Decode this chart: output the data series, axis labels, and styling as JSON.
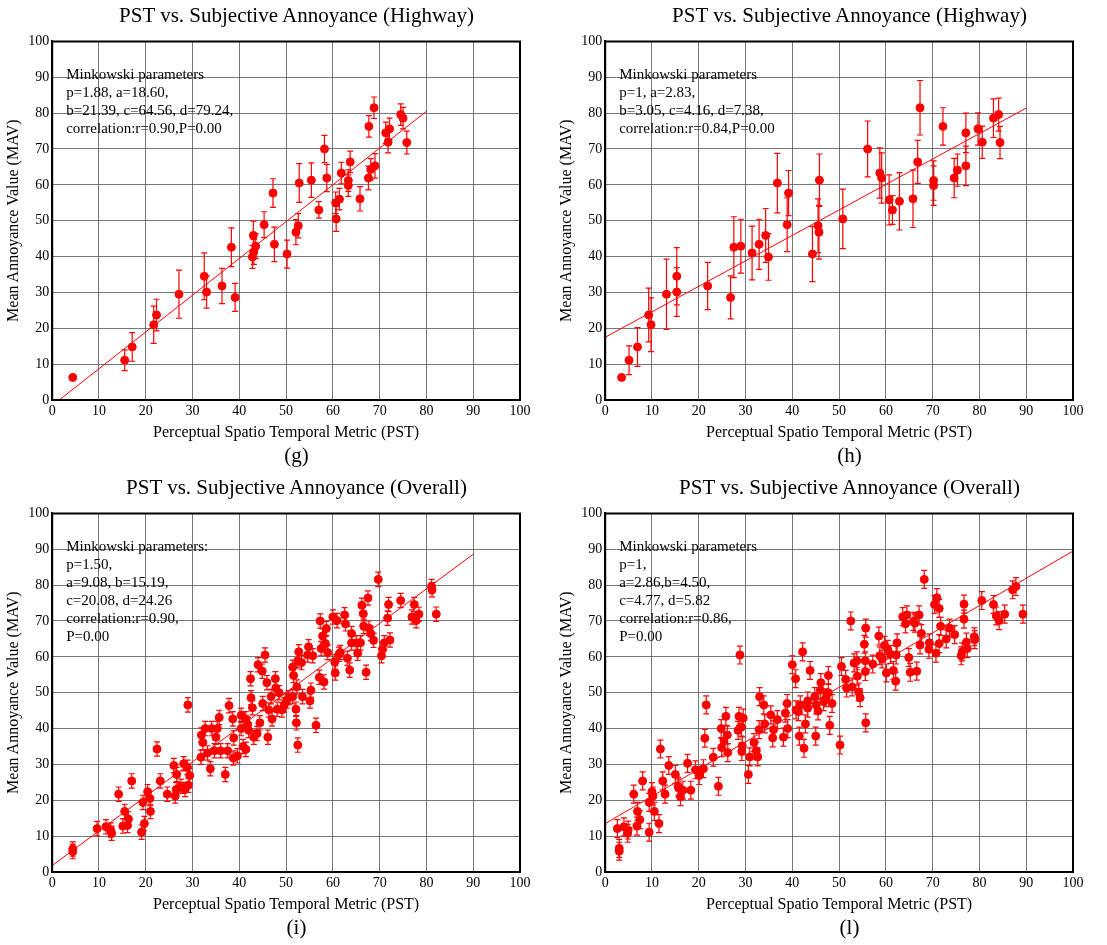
{
  "chart_data": [
    {
      "type": "scatter",
      "title": "PST vs. Subjective Annoyance (Highway)",
      "xlabel": "Perceptual Spatio Temporal Metric (PST)",
      "ylabel": "Mean Annoyance Value (MAV)",
      "annotations": [
        "Minkowski parameters\np=1.88, a=18.60,\nb=21.39, c=64.56, d=79.24,\ncorrelation:r=0.90,P=0.00",
        "(g)"
      ],
      "xlim": [
        0,
        100
      ],
      "ylim": [
        0,
        100
      ],
      "xticks": [
        0,
        10,
        20,
        30,
        40,
        50,
        60,
        70,
        80,
        90,
        100
      ],
      "yticks": [
        0,
        10,
        20,
        30,
        40,
        50,
        60,
        70,
        80,
        90,
        100
      ],
      "grid": true,
      "legend": false,
      "marker": "circle",
      "series": [
        {
          "type": "scatter",
          "color": "#ff0000",
          "x": [
            4.4,
            15.5,
            17.1,
            21.7,
            22.3,
            27.1,
            32.5,
            33.0,
            36.3,
            38.3,
            39.1,
            42.8,
            43.0,
            43.1,
            43.5,
            45.3,
            47.2,
            47.5,
            50.2,
            52.1,
            52.6,
            52.8,
            55.4,
            57.0,
            58.2,
            58.7,
            60.7,
            60.6,
            61.4,
            61.8,
            63.3,
            63.3,
            63.7,
            65.8,
            67.6,
            67.7,
            68.1,
            69.0,
            68.8,
            71.3,
            71.8,
            72.1,
            74.5,
            75.0,
            75.8
          ],
          "values": [
            6.3,
            11.1,
            14.8,
            21.0,
            23.7,
            29.5,
            34.5,
            30.1,
            31.8,
            42.6,
            28.6,
            39.9,
            45.9,
            41.3,
            42.9,
            48.9,
            57.7,
            43.4,
            40.7,
            46.8,
            48.6,
            60.5,
            61.3,
            53.0,
            70.0,
            61.9,
            50.5,
            55.0,
            56.0,
            63.3,
            61.2,
            59.8,
            66.4,
            56.1,
            61.9,
            76.3,
            64.3,
            65.3,
            81.5,
            74.5,
            71.9,
            75.6,
            79.6,
            78.6,
            71.8
          ],
          "errors": [
            null,
            2.9,
            4.0,
            5.2,
            4.4,
            6.7,
            6.5,
            4.5,
            4.9,
            5.4,
            3.9,
            3.2,
            4,
            3.5,
            3.5,
            3.6,
            4,
            4.8,
            3.9,
            3.5,
            3.4,
            5.4,
            4.8,
            2.3,
            3.8,
            3.8,
            3.5,
            3,
            3,
            3,
            3,
            3,
            3,
            3.4,
            3.3,
            3,
            3,
            3.4,
            3,
            3,
            3,
            3,
            3,
            3,
            3.2
          ]
        },
        {
          "type": "line",
          "color": "#ff0000",
          "marker": "none",
          "line_style": "solid",
          "x": [
            1.5,
            80
          ],
          "values": [
            0,
            80.5
          ]
        }
      ]
    },
    {
      "type": "scatter",
      "title": "PST vs. Subjective Annoyance (Highway)",
      "xlabel": "Perceptual Spatio Temporal Metric (PST)",
      "ylabel": "Mean Annoyance Value (MAV)",
      "annotations": [
        "Minkowski parameters\np=1, a=2.83,\nb=3.05, c=4.16, d=7.38,\ncorrelation:r=0.84,P=0.00",
        "(h)"
      ],
      "xlim": [
        0,
        100
      ],
      "ylim": [
        0,
        100
      ],
      "xticks": [
        0,
        10,
        20,
        30,
        40,
        50,
        60,
        70,
        80,
        90,
        100
      ],
      "yticks": [
        0,
        10,
        20,
        30,
        40,
        50,
        60,
        70,
        80,
        90,
        100
      ],
      "grid": true,
      "legend": false,
      "marker": "circle",
      "series": [
        {
          "type": "scatter",
          "color": "#ff0000",
          "x": [
            3.5,
            5.1,
            6.9,
            9.3,
            9.8,
            13.1,
            15.3,
            15.3,
            21.9,
            26.8,
            27.5,
            29.0,
            31.4,
            32.9,
            34.3,
            34.9,
            36.8,
            38.9,
            39.2,
            44.3,
            45.5,
            45.7,
            45.8,
            50.8,
            56.1,
            58.7,
            59.1,
            60.7,
            61.4,
            62.9,
            65.8,
            66.8,
            67.3,
            70.2,
            70.2,
            72.2,
            74.6,
            75.3,
            77.1,
            77.1,
            79.7,
            80.6,
            83.0,
            84.1,
            84.4
          ],
          "values": [
            6.3,
            11.1,
            14.8,
            23.7,
            21.0,
            29.5,
            34.5,
            30.1,
            31.8,
            28.6,
            42.6,
            42.9,
            41.0,
            43.4,
            45.9,
            39.9,
            60.5,
            48.9,
            57.7,
            40.7,
            48.6,
            46.8,
            61.3,
            50.5,
            70.0,
            63.3,
            61.9,
            55.8,
            53.0,
            55.4,
            56.1,
            66.4,
            81.5,
            61.2,
            59.8,
            76.3,
            61.9,
            64.1,
            74.5,
            65.3,
            75.6,
            71.9,
            78.6,
            79.6,
            71.8
          ],
          "errors": [
            null,
            4,
            5.4,
            7.5,
            7.5,
            9.8,
            8,
            6.8,
            6.6,
            6,
            8.5,
            7.5,
            7.5,
            7,
            7.5,
            6.5,
            8.3,
            7.5,
            6.3,
            7.7,
            7.5,
            7.5,
            7.3,
            8.3,
            7.8,
            7,
            7,
            7,
            4,
            8,
            8,
            6,
            7.6,
            5.5,
            5.5,
            5.2,
            5.5,
            4.5,
            5.5,
            5.5,
            4.5,
            4.5,
            5.4,
            4.6,
            4.5
          ]
        },
        {
          "type": "line",
          "color": "#ff0000",
          "marker": "none",
          "line_style": "solid",
          "x": [
            0,
            90
          ],
          "values": [
            17.5,
            81.4
          ]
        }
      ]
    },
    {
      "type": "scatter",
      "title": "PST vs. Subjective Annoyance (Overall)",
      "xlabel": "Perceptual Spatio Temporal Metric (PST)",
      "ylabel": "Mean Annoyance Value (MAV)",
      "annotations": [
        "Minkowski parameters:\np=1.50,\na=9.08, b=15.19,\nc=20.08, d=24.26\ncorrelation:r=0.90,\nP=0.00",
        "(i)"
      ],
      "xlim": [
        0,
        100
      ],
      "ylim": [
        0,
        100
      ],
      "xticks": [
        0,
        10,
        20,
        30,
        40,
        50,
        60,
        70,
        80,
        90,
        100
      ],
      "yticks": [
        0,
        10,
        20,
        30,
        40,
        50,
        60,
        70,
        80,
        90,
        100
      ],
      "grid": true,
      "legend": false,
      "marker": "circle",
      "series": [
        {
          "type": "scatter",
          "color": "#ff0000",
          "x": [
            4.4,
            4.4,
            9.6,
            11.5,
            12.5,
            12.7,
            14.2,
            15.5,
            15.1,
            16.1,
            16.3,
            17.0,
            19.1,
            19.7,
            19.4,
            20.4,
            20.9,
            21.0,
            22.4,
            23.1,
            24.6,
            26.0,
            26.3,
            26.6,
            26.5,
            27.5,
            28.1,
            28.4,
            29.0,
            29.1,
            29.4,
            28.9,
            31.8,
            31.9,
            32.2,
            32.7,
            33.2,
            33.8,
            34.1,
            34.7,
            35.0,
            35.3,
            35.7,
            36.0,
            37.0,
            37.5,
            37.8,
            38.6,
            38.8,
            38.7,
            39.6,
            40.4,
            40.4,
            40.8,
            41.4,
            41.4,
            41.8,
            42.0,
            42.4,
            42.5,
            42.8,
            43.1,
            43.8,
            44.4,
            44.0,
            45.0,
            45.5,
            44.9,
            45.9,
            46.1,
            46.3,
            47.0,
            46.8,
            47.7,
            47.8,
            48.1,
            48.5,
            49.1,
            49.6,
            50.1,
            50.5,
            51.4,
            51.4,
            51.6,
            52.1,
            52.2,
            52.5,
            52.3,
            52.7,
            52.5,
            53.3,
            53.5,
            54.6,
            54.8,
            55.1,
            55.3,
            55.7,
            56.4,
            57.1,
            57.3,
            57.5,
            57.8,
            58.1,
            58.4,
            58.6,
            58.9,
            60.0,
            60.4,
            60.5,
            60.9,
            61.3,
            61.6,
            62.5,
            62.7,
            63.1,
            63.6,
            64.0,
            64.0,
            65.0,
            65.3,
            65.9,
            66.2,
            66.5,
            66.6,
            67.1,
            67.5,
            67.7,
            68.1,
            68.7,
            69.7,
            70.4,
            70.6,
            71.0,
            71.7,
            71.9,
            72.2,
            74.5,
            76.9,
            77.4,
            77.8,
            78.4,
            81.1,
            81.2,
            82.1
          ],
          "values": [
            6.4,
            5.7,
            12.1,
            12.6,
            11.7,
            10.8,
            21.7,
            16.9,
            12.8,
            13.0,
            14.8,
            25.4,
            11.1,
            13.5,
            19.4,
            22.4,
            20.5,
            16.9,
            34.3,
            25.4,
            21.7,
            29.7,
            21.2,
            27.2,
            23.0,
            23.9,
            30.2,
            23.0,
            46.6,
            24.2,
            26.9,
            29.2,
            32.0,
            38.2,
            36.1,
            40.0,
            33.2,
            28.8,
            40.0,
            33.8,
            37.6,
            40.0,
            43.1,
            33.8,
            27.2,
            33.8,
            46.4,
            42.7,
            37.4,
            31.8,
            32.4,
            43.7,
            40.0,
            35.0,
            34.2,
            42.7,
            41.1,
            39.5,
            53.9,
            48.6,
            45.8,
            37.6,
            38.6,
            41.6,
            57.8,
            47.0,
            60.5,
            56.0,
            52.8,
            37.6,
            45.2,
            42.7,
            48.9,
            53.9,
            51.3,
            45.4,
            50.0,
            45.2,
            46.6,
            47.7,
            48.6,
            48.9,
            57.1,
            54.8,
            45.4,
            41.6,
            35.4,
            51.6,
            61.4,
            58.9,
            58.4,
            48.9,
            60.5,
            62.8,
            47.7,
            50.7,
            60.3,
            40.9,
            54.3,
            70.0,
            62.3,
            65.8,
            53.0,
            63.7,
            67.9,
            61.2,
            71.1,
            58.6,
            55.5,
            70.1,
            60.7,
            61.2,
            71.7,
            69.2,
            59.6,
            56.3,
            66.5,
            63.9,
            63.9,
            61.0,
            63.9,
            74.4,
            72.0,
            68.5,
            55.7,
            76.4,
            68.0,
            66.5,
            64.6,
            81.6,
            60.3,
            62.1,
            63.9,
            70.8,
            74.6,
            64.7,
            75.7,
            71.1,
            74.6,
            70.1,
            71.9,
            79.6,
            78.7,
            71.9
          ],
          "errors": [
            2,
            2,
            2,
            2,
            2,
            2,
            2,
            2,
            2,
            2,
            2,
            2,
            2,
            2,
            2,
            2,
            2,
            2,
            2,
            2,
            2,
            2,
            2,
            2,
            2,
            2,
            2,
            2,
            2,
            2,
            2,
            2,
            2,
            2,
            2,
            2,
            2,
            2,
            2,
            2,
            2,
            2,
            2,
            2,
            2,
            2,
            2,
            2,
            2,
            2,
            2,
            2,
            2,
            2,
            2,
            2,
            2,
            2,
            2,
            2,
            2,
            2,
            2,
            2,
            2,
            2,
            2,
            2,
            2,
            2,
            2,
            2,
            2,
            2,
            2,
            2,
            2,
            2,
            2,
            2,
            2,
            2,
            2,
            2,
            2,
            2,
            2,
            2,
            2,
            2,
            2,
            2,
            2,
            2,
            2,
            2,
            2,
            2,
            2,
            2,
            2,
            2,
            2,
            2,
            2,
            2,
            2,
            2,
            2,
            2,
            2,
            2,
            2,
            2,
            2,
            2,
            2,
            2,
            2,
            2,
            2,
            2,
            2,
            2,
            2,
            2,
            2,
            2,
            2,
            2,
            2,
            2,
            2,
            2,
            2,
            2,
            2,
            2,
            2,
            2,
            2,
            2,
            2,
            2
          ]
        },
        {
          "type": "line",
          "color": "#ff0000",
          "marker": "none",
          "line_style": "solid",
          "x": [
            0,
            90
          ],
          "values": [
            1.8,
            88.6
          ]
        }
      ]
    },
    {
      "type": "scatter",
      "title": "PST vs. Subjective Annoyance (Overall)",
      "xlabel": "Perceptual Spatio Temporal Metric (PST)",
      "ylabel": "Mean Annoyance Value (MAV)",
      "annotations": [
        "Minkowski parameters\np=1,\na=2.86,b=4.50,\nc=4.77, d=5.82\ncorrelation:r=0.86,\nP=0.00",
        "(l)"
      ],
      "xlim": [
        0,
        100
      ],
      "ylim": [
        0,
        100
      ],
      "xticks": [
        0,
        10,
        20,
        30,
        40,
        50,
        60,
        70,
        80,
        90,
        100
      ],
      "yticks": [
        0,
        10,
        20,
        30,
        40,
        50,
        60,
        70,
        80,
        90,
        100
      ],
      "grid": true,
      "legend": false,
      "marker": "circle",
      "series": [
        {
          "type": "scatter",
          "color": "#ff0000",
          "x": [
            2.6,
            3.0,
            3.0,
            4.0,
            4.9,
            4.8,
            6.1,
            6.9,
            6.8,
            7.4,
            8.0,
            9.4,
            9.4,
            10.0,
            10.2,
            10.5,
            11.5,
            11.8,
            12.3,
            12.8,
            13.6,
            15.0,
            15.6,
            15.7,
            16.1,
            16.6,
            17.6,
            18.3,
            19.3,
            20.1,
            21.0,
            21.3,
            21.6,
            23.1,
            24.2,
            24.8,
            24.9,
            25.4,
            25.8,
            26.1,
            26.2,
            28.4,
            28.6,
            28.8,
            29.1,
            29.2,
            29.3,
            29.5,
            30.6,
            30.9,
            31.8,
            32.3,
            32.6,
            32.9,
            33.0,
            33.9,
            34.1,
            35.4,
            35.8,
            36.0,
            36.8,
            38.1,
            38.5,
            38.9,
            39.0,
            40.0,
            40.7,
            40.8,
            41.3,
            41.5,
            41.7,
            42.2,
            42.5,
            42.8,
            43.3,
            43.8,
            43.3,
            44.8,
            45.0,
            45.1,
            45.5,
            46.0,
            46.1,
            46.7,
            47.2,
            47.7,
            47.7,
            48.0,
            48.5,
            50.2,
            50.5,
            51.4,
            51.6,
            52.5,
            52.8,
            53.2,
            53.8,
            53.9,
            54.2,
            54.5,
            55.4,
            55.6,
            55.6,
            55.7,
            55.7,
            57.2,
            58.5,
            58.7,
            59.2,
            59.7,
            60.1,
            60.4,
            61.0,
            61.6,
            62.1,
            62.2,
            62.4,
            63.6,
            64.2,
            64.5,
            64.9,
            65.2,
            65.9,
            66.2,
            66.6,
            67.1,
            67.3,
            67.6,
            68.2,
            69.2,
            69.3,
            70.4,
            70.9,
            71.4,
            70.7,
            71.4,
            71.7,
            72.9,
            73.6,
            74.7,
            76.1,
            76.3,
            76.7,
            76.7,
            77.2,
            77.4,
            78.9,
            79.0,
            80.5,
            83.0,
            83.6,
            84.2,
            85.4,
            87.1,
            87.8,
            89.3
          ],
          "values": [
            12.1,
            6.6,
            5.8,
            12.6,
            11.7,
            10.8,
            21.7,
            16.9,
            12.8,
            14.6,
            25.4,
            11.1,
            19.4,
            22.4,
            21.2,
            16.9,
            13.5,
            34.3,
            25.4,
            21.7,
            29.7,
            27.2,
            23.9,
            23.4,
            21.0,
            22.8,
            30.3,
            22.8,
            28.5,
            26.9,
            28.8,
            37.3,
            46.6,
            32.0,
            23.9,
            40.0,
            34.7,
            36.5,
            43.4,
            38.2,
            33.3,
            39.5,
            43.4,
            60.5,
            40.4,
            33.6,
            35.2,
            42.9,
            27.2,
            32.1,
            36.1,
            33.8,
            32.1,
            39.7,
            48.9,
            46.6,
            41.3,
            43.8,
            37.4,
            39.7,
            42.5,
            37.6,
            44.3,
            47.0,
            40.0,
            57.8,
            53.9,
            45.2,
            44.7,
            37.9,
            46.6,
            61.4,
            34.5,
            41.3,
            47.7,
            56.2,
            45.7,
            48.9,
            37.9,
            46.6,
            44.9,
            50.7,
            52.8,
            47.5,
            48.6,
            54.8,
            50.0,
            40.9,
            47.0,
            35.4,
            57.3,
            53.7,
            51.3,
            70.0,
            51.6,
            58.3,
            58.9,
            54.6,
            50.2,
            48.6,
            63.5,
            58.9,
            55.9,
            68.0,
            41.6,
            58.0,
            65.8,
            60.3,
            59.4,
            63.2,
            55.5,
            62.1,
            60.7,
            56.2,
            53.2,
            60.5,
            63.9,
            71.2,
            69.2,
            71.7,
            59.8,
            55.7,
            69.9,
            69.4,
            56.0,
            71.7,
            63.3,
            66.5,
            81.6,
            62.1,
            63.9,
            74.6,
            76.5,
            73.5,
            61.0,
            63.7,
            68.5,
            65.0,
            68.0,
            66.2,
            60.3,
            61.4,
            74.7,
            70.5,
            64.1,
            62.3,
            65.6,
            64.8,
            75.7,
            74.6,
            71.4,
            70.1,
            71.9,
            78.7,
            79.6,
            71.9
          ],
          "errors": [
            2.5,
            2.5,
            2.5,
            2.5,
            2.5,
            2.5,
            2.5,
            2.5,
            2.5,
            2.5,
            2.5,
            2.5,
            2.5,
            2.5,
            2.5,
            2.5,
            2.5,
            2.5,
            2.5,
            2.5,
            2.5,
            2.5,
            2.5,
            2.5,
            2.5,
            2.5,
            2.5,
            2.5,
            2.5,
            2.5,
            2.5,
            2.5,
            2.5,
            2.5,
            2.5,
            2.5,
            2.5,
            2.5,
            2.5,
            2.5,
            2.5,
            2.5,
            2.5,
            2.5,
            2.5,
            2.5,
            2.5,
            2.5,
            2.5,
            2.5,
            2.5,
            2.5,
            2.5,
            2.5,
            2.5,
            2.5,
            2.5,
            2.5,
            2.5,
            2.5,
            2.5,
            2.5,
            2.5,
            2.5,
            2.5,
            2.5,
            2.5,
            2.5,
            2.5,
            2.5,
            2.5,
            2.5,
            2.5,
            2.5,
            2.5,
            2.5,
            2.5,
            2.5,
            2.5,
            2.5,
            2.5,
            2.5,
            2.5,
            2.5,
            2.5,
            2.5,
            2.5,
            2.5,
            2.5,
            2.5,
            2.5,
            2.5,
            2.5,
            2.5,
            2.5,
            2.5,
            2.5,
            2.5,
            2.5,
            2.5,
            2.5,
            2.5,
            2.5,
            2.5,
            2.5,
            2.5,
            2.5,
            2.5,
            2.5,
            2.5,
            2.5,
            2.5,
            2.5,
            2.5,
            2.5,
            2.5,
            2.5,
            2.5,
            2.5,
            2.5,
            2.5,
            2.5,
            2.5,
            2.5,
            2.5,
            2.5,
            2.5,
            2.5,
            2.5,
            2.5,
            2.5,
            2.5,
            2.5,
            2.5,
            2.5,
            2.5,
            2.5,
            2.5,
            2.5,
            2.5,
            2.5,
            2.5,
            2.5,
            2.5,
            2.5,
            2.5,
            2.5,
            2.5,
            2.5,
            2.5,
            2.5,
            2.5,
            2.5,
            2.5,
            2.5,
            2.5
          ]
        },
        {
          "type": "line",
          "color": "#ff0000",
          "marker": "none",
          "line_style": "solid",
          "x": [
            0,
            100
          ],
          "values": [
            13.5,
            89.5
          ]
        }
      ]
    }
  ]
}
